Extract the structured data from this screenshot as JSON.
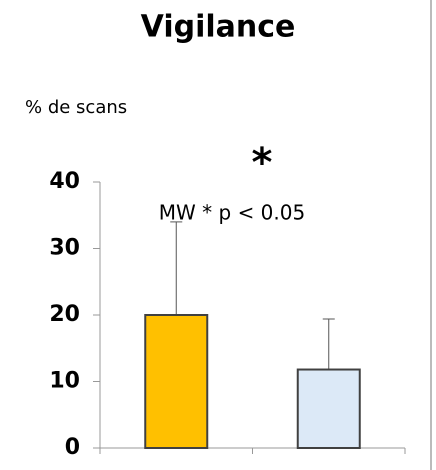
{
  "chart_data": {
    "type": "bar",
    "title": "Vigilance",
    "ylabel": "% de scans",
    "annotations": [
      "*",
      "MW * p < 0.05"
    ],
    "categories": [
      null,
      null
    ],
    "series": [
      {
        "values": [
          20,
          11.8
        ],
        "errors": [
          14,
          7.6
        ],
        "colors": [
          "#ffc000",
          "#dce9f7"
        ],
        "edgecolor": "#404040"
      }
    ],
    "ylim": [
      0,
      40
    ],
    "yticks": [
      0,
      10,
      20,
      30,
      40
    ],
    "grid": false
  }
}
